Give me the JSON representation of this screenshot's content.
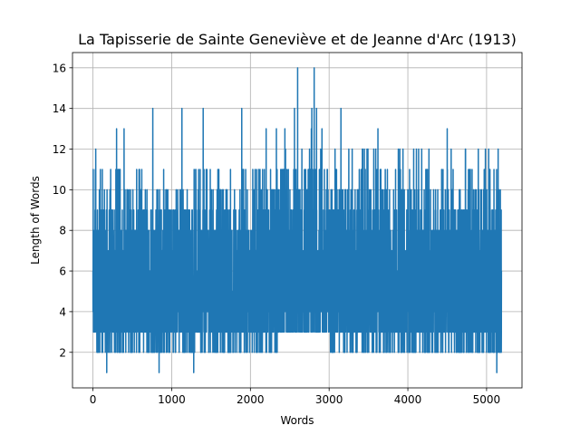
{
  "chart_data": {
    "type": "line",
    "title": "La Tapisserie de Sainte Geneviève et de Jeanne d'Arc (1913)",
    "xlabel": "Words",
    "ylabel": "Length of Words",
    "xlim": [
      -260,
      5450
    ],
    "ylim": [
      0.25,
      16.75
    ],
    "xticks": [
      0,
      1000,
      2000,
      3000,
      4000,
      5000
    ],
    "yticks": [
      2,
      4,
      6,
      8,
      10,
      12,
      14,
      16
    ],
    "grid": true,
    "n_points": 5190,
    "series_color": "#1f77b4",
    "spikes": [
      {
        "x": 30,
        "y": 11
      },
      {
        "x": 35,
        "y": 12
      },
      {
        "x": 50,
        "y": 2
      },
      {
        "x": 175,
        "y": 1
      },
      {
        "x": 300,
        "y": 13
      },
      {
        "x": 395,
        "y": 13
      },
      {
        "x": 760,
        "y": 14
      },
      {
        "x": 840,
        "y": 1
      },
      {
        "x": 1130,
        "y": 14
      },
      {
        "x": 1280,
        "y": 1
      },
      {
        "x": 1400,
        "y": 14
      },
      {
        "x": 1890,
        "y": 14
      },
      {
        "x": 2200,
        "y": 13
      },
      {
        "x": 2330,
        "y": 13
      },
      {
        "x": 2560,
        "y": 14
      },
      {
        "x": 2600,
        "y": 16
      },
      {
        "x": 2780,
        "y": 14
      },
      {
        "x": 2810,
        "y": 16
      },
      {
        "x": 2840,
        "y": 14
      },
      {
        "x": 3150,
        "y": 14
      },
      {
        "x": 3620,
        "y": 13
      },
      {
        "x": 4500,
        "y": 13
      },
      {
        "x": 5130,
        "y": 1
      }
    ],
    "dense_bands": [
      {
        "from": 0,
        "to": 2400,
        "low": 2,
        "high": 11
      },
      {
        "from": 2400,
        "to": 3000,
        "low": 3,
        "high": 13
      },
      {
        "from": 3000,
        "to": 5190,
        "low": 2,
        "high": 12
      }
    ]
  }
}
